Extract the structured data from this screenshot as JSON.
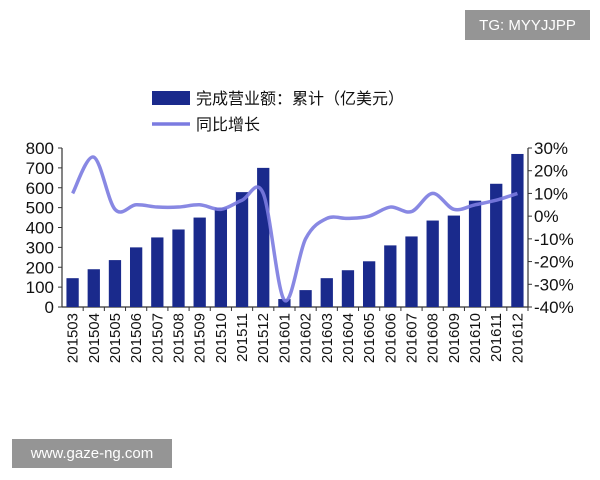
{
  "watermarks": {
    "top": "TG: MYYJJPP",
    "bottom": "www.gaze-ng.com"
  },
  "chart_data": {
    "type": "bar",
    "title": "",
    "legend": [
      {
        "name": "完成营业额：累计（亿美元）",
        "type": "bar",
        "color": "#1a2a8c"
      },
      {
        "name": "同比增长",
        "type": "line",
        "color": "#7b7be0"
      }
    ],
    "legend_placement": "top-center",
    "categories": [
      "201503",
      "201504",
      "201505",
      "201506",
      "201507",
      "201508",
      "201509",
      "201510",
      "201511",
      "201512",
      "201601",
      "201602",
      "201603",
      "201604",
      "201605",
      "201606",
      "201607",
      "201608",
      "201609",
      "201610",
      "201611",
      "201612"
    ],
    "series": [
      {
        "name": "完成营业额：累计（亿美元）",
        "axis": "left",
        "type": "bar",
        "values": [
          145,
          190,
          236,
          300,
          350,
          390,
          450,
          500,
          578,
          700,
          40,
          85,
          145,
          185,
          230,
          310,
          355,
          435,
          460,
          535,
          620,
          770
        ]
      },
      {
        "name": "同比增长",
        "axis": "right",
        "type": "line",
        "unit": "%",
        "values": [
          10,
          26,
          3,
          5,
          4,
          4,
          5,
          3,
          7,
          10,
          -37,
          -10,
          -1,
          -1,
          0,
          4,
          2,
          10,
          3,
          5,
          7,
          10
        ]
      }
    ],
    "y_left": {
      "ylim": [
        0,
        800
      ],
      "ticks": [
        "0",
        "100",
        "200",
        "300",
        "400",
        "500",
        "600",
        "700",
        "800"
      ]
    },
    "y_right": {
      "ylim": [
        -40,
        30
      ],
      "ticks": [
        "-40%",
        "-30%",
        "-20%",
        "-10%",
        "0%",
        "10%",
        "20%",
        "30%"
      ]
    },
    "grid": false
  }
}
